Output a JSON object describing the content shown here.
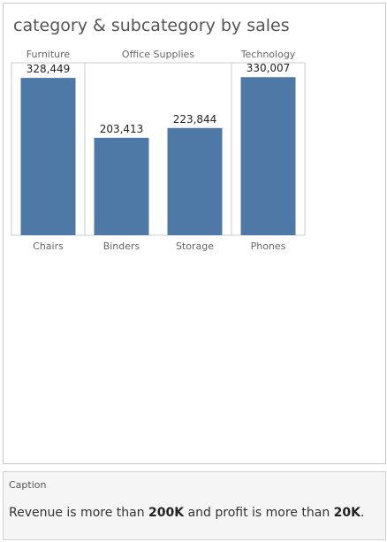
{
  "title": "category & subcategory by sales",
  "chart_data": {
    "type": "bar",
    "title": "category & subcategory by sales",
    "groups": [
      {
        "name": "Furniture",
        "categories": [
          "Chairs"
        ]
      },
      {
        "name": "Office Supplies",
        "categories": [
          "Binders",
          "Storage"
        ]
      },
      {
        "name": "Technology",
        "categories": [
          "Phones"
        ]
      }
    ],
    "categories": [
      "Chairs",
      "Binders",
      "Storage",
      "Phones"
    ],
    "values": [
      328449,
      203413,
      223844,
      330007
    ],
    "value_labels": [
      "328,449",
      "203,413",
      "223,844",
      "330,007"
    ],
    "ylim": [
      0,
      360000
    ],
    "grid": false,
    "bar_color": "#4e79a7"
  },
  "caption": {
    "header": "Caption",
    "prefix": "Revenue is more than ",
    "value1": "200K",
    "middle": " and profit is more than ",
    "value2": "20K",
    "suffix": "."
  }
}
